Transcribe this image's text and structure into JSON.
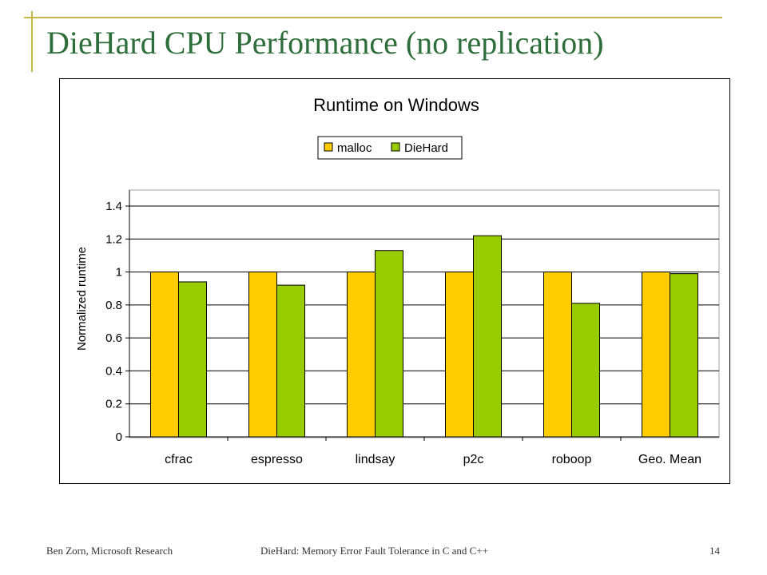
{
  "slide": {
    "title": "DieHard CPU Performance (no replication)",
    "footer_left": "Ben Zorn, Microsoft Research",
    "footer_center": "DieHard: Memory Error Fault Tolerance in C and C++",
    "page_number": "14"
  },
  "colors": {
    "accent_rule": "#c8b84a",
    "title_text": "#2e6e3a",
    "malloc": "#ffcc00",
    "diehard": "#99cc00"
  },
  "chart_data": {
    "type": "bar",
    "title": "Runtime on Windows",
    "xlabel": "",
    "ylabel": "Normalized runtime",
    "categories": [
      "cfrac",
      "espresso",
      "lindsay",
      "p2c",
      "roboop",
      "Geo. Mean"
    ],
    "series": [
      {
        "name": "malloc",
        "values": [
          1,
          1,
          1,
          1,
          1,
          1
        ]
      },
      {
        "name": "DieHard",
        "values": [
          0.94,
          0.92,
          1.13,
          1.22,
          0.81,
          0.99
        ]
      }
    ],
    "ylim": [
      0,
      1.4
    ],
    "yticks": [
      "0",
      "0.2",
      "0.4",
      "0.6",
      "0.8",
      "1",
      "1.2",
      "1.4"
    ],
    "grid": true,
    "legend_position": "top-center"
  }
}
